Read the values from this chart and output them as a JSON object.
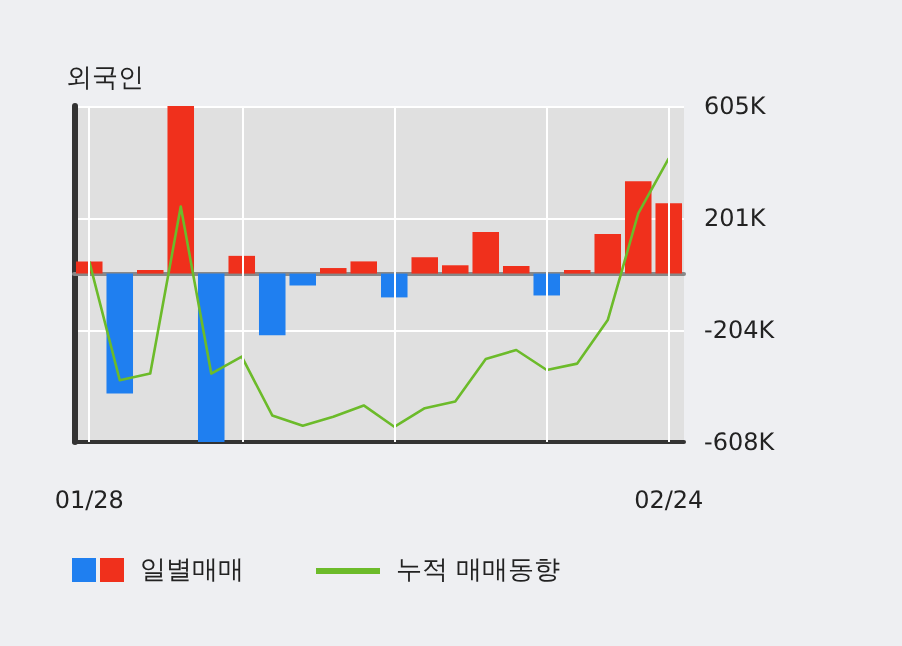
{
  "chart_data": {
    "type": "bar",
    "title": "외국인",
    "categories": [
      "01/28",
      null,
      null,
      null,
      null,
      null,
      null,
      null,
      null,
      null,
      null,
      null,
      null,
      null,
      null,
      null,
      null,
      null,
      null,
      "02/24"
    ],
    "series": [
      {
        "name": "일별매매",
        "values": [
          44,
          -433,
          13,
          605,
          -608,
          64,
          -223,
          -43,
          20,
          44,
          -86,
          59,
          30,
          150,
          27,
          -79,
          13,
          143,
          333,
          254
        ],
        "colors": [
          "#f0301c",
          "#1f7ff0",
          "#f0301c",
          "#f0301c",
          "#1f7ff0",
          "#f0301c",
          "#1f7ff0",
          "#1f7ff0",
          "#f0301c",
          "#f0301c",
          "#1f7ff0",
          "#f0301c",
          "#f0301c",
          "#f0301c",
          "#f0301c",
          "#1f7ff0",
          "#f0301c",
          "#f0301c",
          "#f0301c",
          "#f0301c"
        ]
      },
      {
        "name": "누적 매매동향",
        "type": "line",
        "color": "#6cbb2a",
        "values": [
          44,
          -385,
          -361,
          242,
          -361,
          -300,
          -512,
          -549,
          -517,
          -476,
          -553,
          -486,
          -462,
          -308,
          -276,
          -348,
          -325,
          -168,
          217,
          416
        ]
      }
    ],
    "ylim": [
      -608,
      605
    ],
    "yticks": [
      {
        "value": -608,
        "label": "-608K"
      },
      {
        "value": -204,
        "label": "-204K"
      },
      {
        "value": 201,
        "label": "201K"
      },
      {
        "value": 605,
        "label": "605K"
      }
    ],
    "grid": true,
    "legend": "bottom",
    "marker": "none",
    "line_style": "solid"
  }
}
